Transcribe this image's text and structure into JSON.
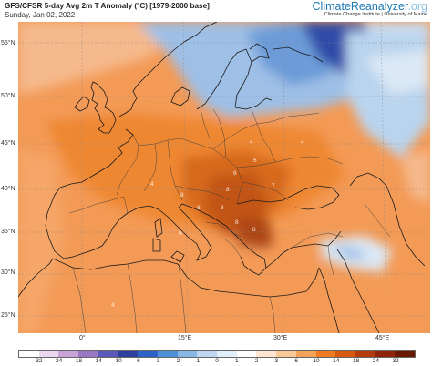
{
  "header": {
    "title": "GFS/CFSR 5-day Avg 2m T Anomaly (°C) [1979-2000 base]",
    "date": "Sunday, Jan 02, 2022",
    "brand_main": "ClimateReanalyzer",
    "brand_tld": ".org",
    "brand_sub": "Climate Change Institute | University of Maine"
  },
  "axes": {
    "latitude_labels": [
      "55°N",
      "50°N",
      "45°N",
      "40°N",
      "35°N",
      "30°N",
      "25°N"
    ],
    "longitude_labels": [
      "0°",
      "15°E",
      "30°E",
      "45°E"
    ]
  },
  "map_labels": {
    "anomaly_values": [
      "4",
      "8",
      "6",
      "8",
      "8",
      "8",
      "8",
      "6",
      "7",
      "8",
      "6",
      "4",
      "4",
      "4"
    ]
  },
  "colorbar": {
    "tick_labels": [
      "-32",
      "-24",
      "-18",
      "-14",
      "-10",
      "-6",
      "-3",
      "-2",
      "-1",
      "0",
      "1",
      "2",
      "3",
      "6",
      "10",
      "14",
      "18",
      "24",
      "32"
    ],
    "colors": [
      "#ffffff",
      "#ead8ee",
      "#c9a3d8",
      "#9a78c6",
      "#5b59ba",
      "#2e3fa0",
      "#2a63c6",
      "#4e90d8",
      "#86b8e6",
      "#bcd7ef",
      "#e2eef8",
      "#ffffff",
      "#fde6cf",
      "#fbc897",
      "#f6a35a",
      "#ee7b22",
      "#d85a11",
      "#b43b0c",
      "#8e2508",
      "#6a1704"
    ]
  },
  "colors": {
    "ocean_warm": "#f39a56",
    "land_warm": "#ee8733",
    "hot_core": "#c25417",
    "cold_blue": "#6c9bd8",
    "deep_cold": "#2f4ba8"
  }
}
